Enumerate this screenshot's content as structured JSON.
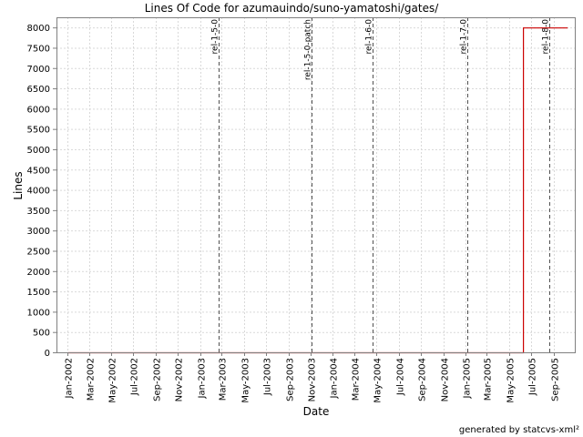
{
  "chart_data": {
    "type": "line",
    "title": "Lines Of Code for azumauindo/suno-yamatoshi/gates/",
    "xlabel": "Date",
    "ylabel": "Lines",
    "ylim": [
      0,
      8250
    ],
    "xlim": [
      "2001-12-01",
      "2005-11-01"
    ],
    "grid": true,
    "y_ticks": [
      0,
      500,
      1000,
      1500,
      2000,
      2500,
      3000,
      3500,
      4000,
      4500,
      5000,
      5500,
      6000,
      6500,
      7000,
      7500,
      8000
    ],
    "x_ticks": [
      {
        "label": "Jan-2002",
        "date": "2002-01-01"
      },
      {
        "label": "Mar-2002",
        "date": "2002-03-01"
      },
      {
        "label": "May-2002",
        "date": "2002-05-01"
      },
      {
        "label": "Jul-2002",
        "date": "2002-07-01"
      },
      {
        "label": "Sep-2002",
        "date": "2002-09-01"
      },
      {
        "label": "Nov-2002",
        "date": "2002-11-01"
      },
      {
        "label": "Jan-2003",
        "date": "2003-01-01"
      },
      {
        "label": "Mar-2003",
        "date": "2003-03-01"
      },
      {
        "label": "May-2003",
        "date": "2003-05-01"
      },
      {
        "label": "Jul-2003",
        "date": "2003-07-01"
      },
      {
        "label": "Sep-2003",
        "date": "2003-09-01"
      },
      {
        "label": "Nov-2003",
        "date": "2003-11-01"
      },
      {
        "label": "Jan-2004",
        "date": "2004-01-01"
      },
      {
        "label": "Mar-2004",
        "date": "2004-03-01"
      },
      {
        "label": "May-2004",
        "date": "2004-05-01"
      },
      {
        "label": "Jul-2004",
        "date": "2004-07-01"
      },
      {
        "label": "Sep-2004",
        "date": "2004-09-01"
      },
      {
        "label": "Nov-2004",
        "date": "2004-11-01"
      },
      {
        "label": "Jan-2005",
        "date": "2005-01-01"
      },
      {
        "label": "Mar-2005",
        "date": "2005-03-01"
      },
      {
        "label": "May-2005",
        "date": "2005-05-01"
      },
      {
        "label": "Jul-2005",
        "date": "2005-07-01"
      },
      {
        "label": "Sep-2005",
        "date": "2005-09-01"
      }
    ],
    "series": [
      {
        "color": "#cc0000",
        "points": [
          {
            "x": "2002-01-01",
            "y": 0
          },
          {
            "x": "2005-06-10",
            "y": 0
          },
          {
            "x": "2005-06-10",
            "y": 8000
          },
          {
            "x": "2005-10-10",
            "y": 8000
          }
        ]
      }
    ],
    "markers": [
      {
        "label": "rel-1-5-0",
        "date": "2003-02-20"
      },
      {
        "label": "rel-1-5-0-patch",
        "date": "2003-11-05"
      },
      {
        "label": "rel-1-6-0",
        "date": "2004-04-20"
      },
      {
        "label": "rel-1-7-0",
        "date": "2005-01-05"
      },
      {
        "label": "rel-1-8-0",
        "date": "2005-08-20"
      }
    ]
  },
  "credit": "generated by statcvs-xml²"
}
